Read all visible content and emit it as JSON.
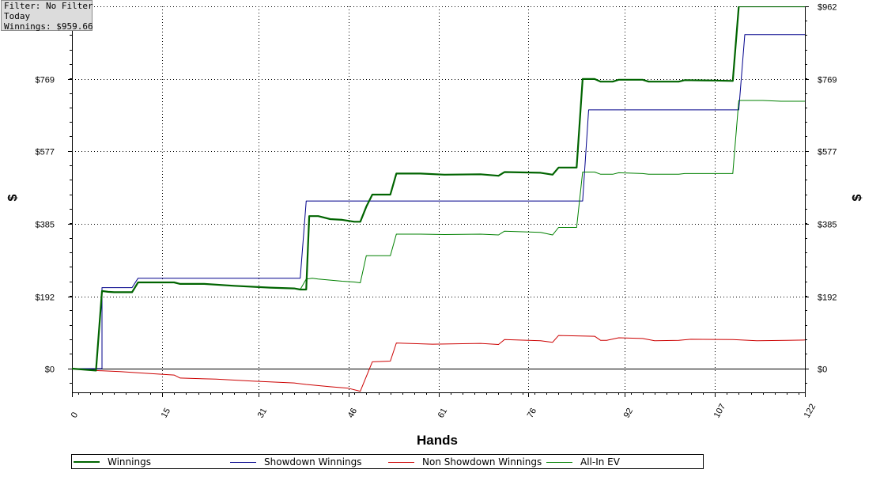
{
  "info": {
    "filter": "Filter: No Filter",
    "period": "Today",
    "winnings": "Winnings: $959.66"
  },
  "chart_data": {
    "type": "line",
    "xlabel": "Hands",
    "ylabel_left": "$",
    "ylabel_right": "$",
    "xlim": [
      0,
      122
    ],
    "ylim": [
      -60,
      962
    ],
    "x_ticks": [
      0,
      15,
      31,
      46,
      61,
      76,
      92,
      107,
      122
    ],
    "y_ticks": [
      0,
      192,
      385,
      577,
      769,
      962
    ],
    "y_tick_labels": [
      "$0",
      "$192",
      "$385",
      "$577",
      "$769",
      "$962"
    ],
    "grid": true,
    "legend_position": "bottom",
    "series": [
      {
        "name": "Winnings",
        "color": "#006400",
        "stroke": 2.2,
        "points": [
          [
            0,
            0
          ],
          [
            4,
            -5
          ],
          [
            5,
            206
          ],
          [
            6,
            204
          ],
          [
            7,
            203
          ],
          [
            10,
            203
          ],
          [
            11,
            229
          ],
          [
            17,
            229
          ],
          [
            18,
            225
          ],
          [
            22,
            225
          ],
          [
            27,
            220
          ],
          [
            33,
            215
          ],
          [
            37,
            213
          ],
          [
            38,
            210
          ],
          [
            39,
            210
          ],
          [
            39.5,
            405
          ],
          [
            41,
            405
          ],
          [
            43,
            397
          ],
          [
            45,
            395
          ],
          [
            47,
            390
          ],
          [
            48,
            390
          ],
          [
            49,
            430
          ],
          [
            50,
            462
          ],
          [
            53,
            462
          ],
          [
            54,
            518
          ],
          [
            58,
            518
          ],
          [
            62,
            515
          ],
          [
            68,
            516
          ],
          [
            71,
            512
          ],
          [
            72,
            522
          ],
          [
            78,
            520
          ],
          [
            80,
            515
          ],
          [
            81,
            534
          ],
          [
            84,
            534
          ],
          [
            85,
            769
          ],
          [
            87,
            769
          ],
          [
            88,
            762
          ],
          [
            90,
            762
          ],
          [
            91,
            767
          ],
          [
            95,
            767
          ],
          [
            96,
            762
          ],
          [
            101,
            762
          ],
          [
            102,
            766
          ],
          [
            107,
            765
          ],
          [
            110,
            764
          ],
          [
            111,
            962
          ],
          [
            117,
            962
          ],
          [
            122,
            962
          ]
        ]
      },
      {
        "name": "Showdown Winnings",
        "color": "#00008b",
        "stroke": 1,
        "points": [
          [
            0,
            0
          ],
          [
            5,
            0
          ],
          [
            5,
            215
          ],
          [
            10,
            215
          ],
          [
            11,
            240
          ],
          [
            38,
            240
          ],
          [
            39,
            445
          ],
          [
            85,
            445
          ],
          [
            86,
            687
          ],
          [
            111,
            687
          ],
          [
            112,
            887
          ],
          [
            122,
            887
          ]
        ]
      },
      {
        "name": "Non Showdown Winnings",
        "color": "#cc0000",
        "stroke": 1,
        "points": [
          [
            0,
            0
          ],
          [
            4,
            -5
          ],
          [
            8,
            -8
          ],
          [
            12,
            -12
          ],
          [
            17,
            -17
          ],
          [
            18,
            -25
          ],
          [
            24,
            -28
          ],
          [
            30,
            -33
          ],
          [
            37,
            -38
          ],
          [
            39,
            -42
          ],
          [
            43,
            -48
          ],
          [
            46,
            -52
          ],
          [
            48,
            -60
          ],
          [
            50,
            18
          ],
          [
            53,
            20
          ],
          [
            54,
            68
          ],
          [
            60,
            65
          ],
          [
            68,
            67
          ],
          [
            71,
            64
          ],
          [
            72,
            77
          ],
          [
            78,
            74
          ],
          [
            80,
            70
          ],
          [
            81,
            88
          ],
          [
            87,
            86
          ],
          [
            88,
            75
          ],
          [
            89,
            75
          ],
          [
            91,
            82
          ],
          [
            95,
            80
          ],
          [
            97,
            74
          ],
          [
            101,
            75
          ],
          [
            103,
            78
          ],
          [
            110,
            77
          ],
          [
            114,
            74
          ],
          [
            119,
            75
          ],
          [
            122,
            76
          ]
        ]
      },
      {
        "name": "All-In EV",
        "color": "#008000",
        "stroke": 1,
        "points": [
          [
            0,
            0
          ],
          [
            4,
            -5
          ],
          [
            5,
            206
          ],
          [
            6,
            204
          ],
          [
            7,
            203
          ],
          [
            10,
            203
          ],
          [
            11,
            229
          ],
          [
            17,
            229
          ],
          [
            18,
            225
          ],
          [
            22,
            225
          ],
          [
            27,
            220
          ],
          [
            33,
            215
          ],
          [
            37,
            213
          ],
          [
            38,
            210
          ],
          [
            39,
            238
          ],
          [
            40,
            240
          ],
          [
            41,
            238
          ],
          [
            43,
            235
          ],
          [
            45,
            232
          ],
          [
            47,
            230
          ],
          [
            48,
            228
          ],
          [
            49,
            300
          ],
          [
            53,
            300
          ],
          [
            54,
            357
          ],
          [
            58,
            357
          ],
          [
            62,
            356
          ],
          [
            68,
            357
          ],
          [
            71,
            355
          ],
          [
            72,
            365
          ],
          [
            78,
            362
          ],
          [
            80,
            355
          ],
          [
            81,
            375
          ],
          [
            84,
            375
          ],
          [
            85,
            522
          ],
          [
            87,
            522
          ],
          [
            88,
            516
          ],
          [
            90,
            516
          ],
          [
            91,
            520
          ],
          [
            95,
            518
          ],
          [
            96,
            516
          ],
          [
            101,
            516
          ],
          [
            102,
            518
          ],
          [
            107,
            518
          ],
          [
            110,
            518
          ],
          [
            111,
            712
          ],
          [
            115,
            712
          ],
          [
            118,
            710
          ],
          [
            122,
            710
          ]
        ]
      }
    ]
  }
}
